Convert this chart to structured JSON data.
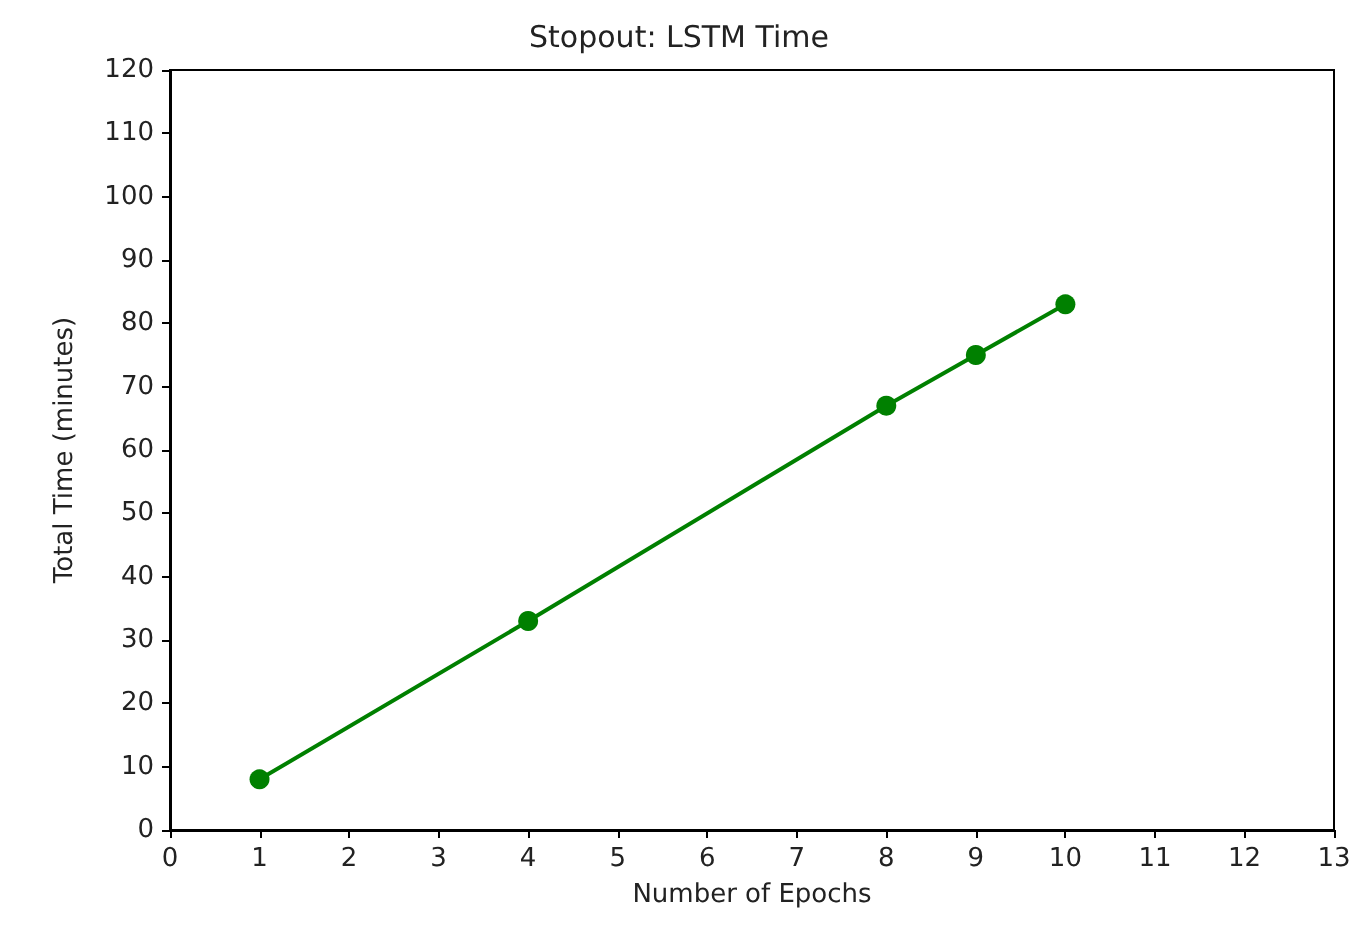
{
  "chart_data": {
    "type": "line",
    "title": "Stopout: LSTM Time",
    "xlabel": "Number of Epochs",
    "ylabel": "Total Time (minutes)",
    "x": [
      1,
      4,
      8,
      9,
      10
    ],
    "series": [
      {
        "color": "#008000",
        "values": [
          8,
          33,
          67,
          75,
          83
        ]
      }
    ],
    "xlim": [
      0,
      13
    ],
    "xticks": [
      0,
      1,
      2,
      3,
      4,
      5,
      6,
      7,
      8,
      9,
      10,
      11,
      12,
      13
    ],
    "ylim": [
      0,
      120
    ],
    "yticks": [
      0,
      10,
      20,
      30,
      40,
      50,
      60,
      70,
      80,
      90,
      100,
      110,
      120
    ],
    "grid": false,
    "marker": "circle",
    "line_style": "solid"
  }
}
